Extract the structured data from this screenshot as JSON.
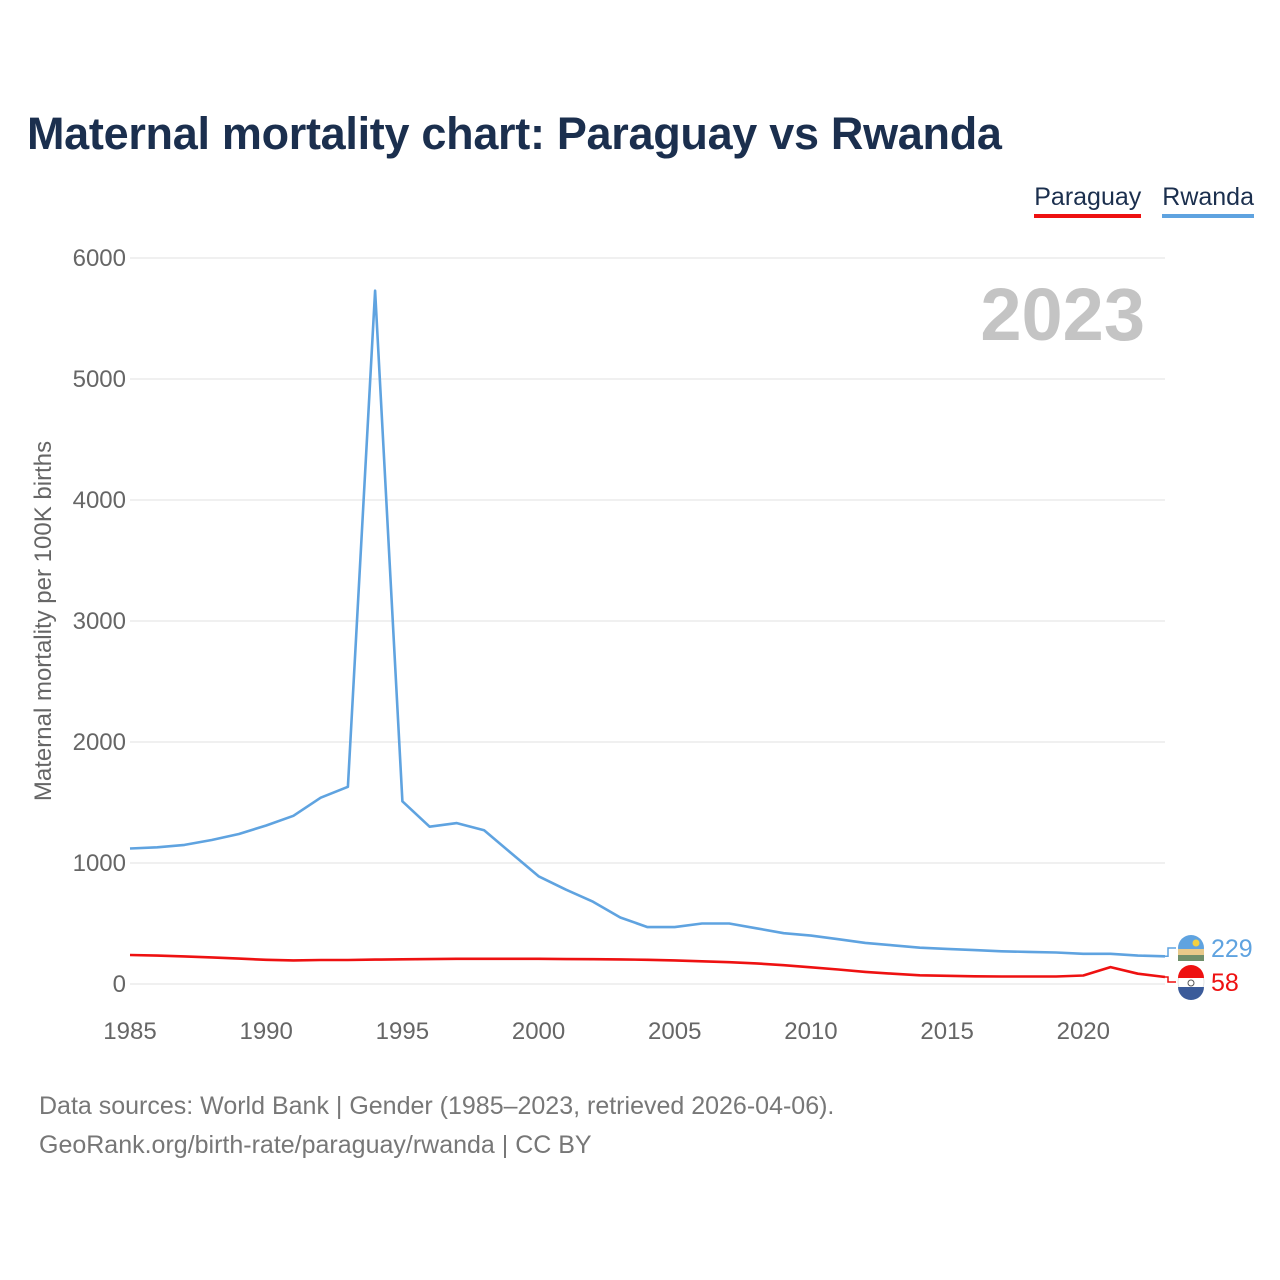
{
  "title": "Maternal mortality chart: Paraguay vs Rwanda",
  "legend": {
    "paraguay": "Paraguay",
    "rwanda": "Rwanda"
  },
  "colors": {
    "paraguay": "#ee1111",
    "rwanda": "#5fa3e0",
    "title": "#1b2f4e",
    "year": "#c4c4c4"
  },
  "chart_data": {
    "type": "line",
    "title": "Maternal mortality chart: Paraguay vs Rwanda",
    "ylabel": "Maternal mortality per 100K births",
    "xlabel": "",
    "year_display": "2023",
    "xlim": [
      1985,
      2023
    ],
    "ylim": [
      0,
      6000
    ],
    "x_ticks": [
      1985,
      1990,
      1995,
      2000,
      2005,
      2010,
      2015,
      2020
    ],
    "y_ticks": [
      0,
      1000,
      2000,
      3000,
      4000,
      5000,
      6000
    ],
    "x": [
      1985,
      1986,
      1987,
      1988,
      1989,
      1990,
      1991,
      1992,
      1993,
      1994,
      1995,
      1996,
      1997,
      1998,
      1999,
      2000,
      2001,
      2002,
      2003,
      2004,
      2005,
      2006,
      2007,
      2008,
      2009,
      2010,
      2011,
      2012,
      2013,
      2014,
      2015,
      2016,
      2017,
      2018,
      2019,
      2020,
      2021,
      2022,
      2023
    ],
    "series": [
      {
        "name": "Rwanda",
        "end_label": "229",
        "values": [
          1120,
          1130,
          1150,
          1190,
          1240,
          1310,
          1390,
          1540,
          1630,
          5730,
          1510,
          1300,
          1330,
          1270,
          1080,
          890,
          780,
          680,
          550,
          470,
          470,
          500,
          500,
          460,
          420,
          400,
          370,
          340,
          320,
          300,
          290,
          280,
          270,
          265,
          260,
          250,
          250,
          235,
          229
        ]
      },
      {
        "name": "Paraguay",
        "end_label": "58",
        "values": [
          240,
          235,
          228,
          220,
          210,
          200,
          195,
          198,
          198,
          202,
          204,
          206,
          208,
          208,
          208,
          208,
          206,
          205,
          203,
          200,
          195,
          188,
          180,
          170,
          155,
          138,
          120,
          100,
          85,
          72,
          68,
          64,
          62,
          62,
          62,
          70,
          140,
          85,
          58
        ]
      }
    ]
  },
  "footer": {
    "line1": "Data sources: World Bank | Gender (1985–2023, retrieved 2026-04-06).",
    "line2": "GeoRank.org/birth-rate/paraguay/rwanda | CC BY"
  }
}
